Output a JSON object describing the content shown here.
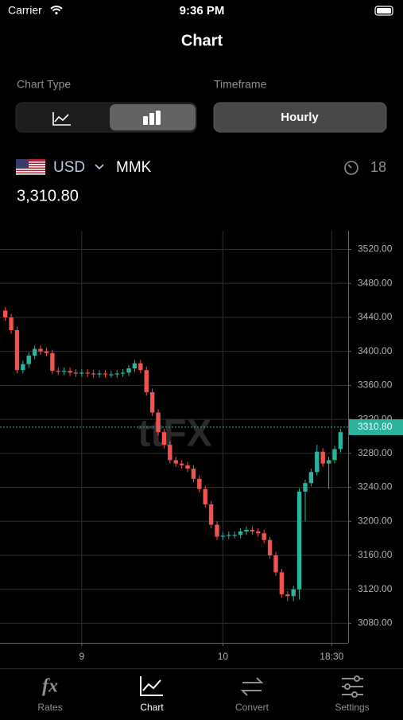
{
  "status_bar": {
    "carrier": "Carrier",
    "time": "9:36 PM"
  },
  "header": {
    "title": "Chart"
  },
  "controls": {
    "chart_type_label": "Chart Type",
    "timeframe_label": "Timeframe",
    "timeframe": "Hourly"
  },
  "pair": {
    "base": "USD",
    "quote": "MMK",
    "countdown": 18
  },
  "price": "3,310.80",
  "chart_data": {
    "type": "candlestick",
    "watermark": "ttFX",
    "x": [
      -13,
      -12,
      -11,
      -10,
      -9,
      -8,
      -7,
      -6,
      -5,
      -4,
      -3,
      -2,
      -1,
      0,
      1,
      2,
      3,
      4,
      5,
      6,
      7,
      8,
      9,
      10,
      11,
      12,
      13,
      14,
      15,
      16,
      17,
      18,
      19,
      20,
      21,
      22,
      23,
      24,
      25,
      26,
      27,
      28,
      29,
      30,
      31,
      32,
      33,
      34,
      35,
      36,
      37,
      38,
      39,
      40,
      41,
      42,
      43,
      44
    ],
    "open": [
      3448,
      3440,
      3425,
      3378,
      3385,
      3395,
      3403,
      3400,
      3398,
      3377,
      3376,
      3377,
      3375,
      3374,
      3375,
      3374,
      3373,
      3374,
      3373,
      3373,
      3374,
      3375,
      3380,
      3386,
      3378,
      3352,
      3328,
      3305,
      3290,
      3272,
      3268,
      3266,
      3262,
      3250,
      3238,
      3220,
      3196,
      3182,
      3183,
      3184,
      3184,
      3188,
      3190,
      3188,
      3186,
      3178,
      3160,
      3140,
      3114,
      3112,
      3120,
      3235,
      3245,
      3258,
      3282,
      3268,
      3272,
      3285
    ],
    "high": [
      3452,
      3444,
      3429,
      3389,
      3399,
      3407,
      3407,
      3404,
      3402,
      3381,
      3381,
      3381,
      3379,
      3379,
      3379,
      3378,
      3378,
      3378,
      3377,
      3378,
      3379,
      3384,
      3390,
      3390,
      3382,
      3356,
      3332,
      3309,
      3294,
      3276,
      3272,
      3270,
      3266,
      3254,
      3242,
      3224,
      3200,
      3187,
      3188,
      3188,
      3192,
      3194,
      3194,
      3192,
      3190,
      3182,
      3164,
      3144,
      3118,
      3124,
      3239,
      3249,
      3262,
      3290,
      3286,
      3276,
      3289,
      3309
    ],
    "low": [
      3436,
      3421,
      3374,
      3374,
      3381,
      3391,
      3396,
      3394,
      3373,
      3372,
      3372,
      3371,
      3370,
      3370,
      3370,
      3369,
      3369,
      3369,
      3369,
      3369,
      3370,
      3371,
      3376,
      3374,
      3348,
      3324,
      3301,
      3286,
      3268,
      3264,
      3262,
      3258,
      3246,
      3234,
      3216,
      3192,
      3178,
      3178,
      3179,
      3180,
      3180,
      3184,
      3184,
      3182,
      3174,
      3156,
      3136,
      3110,
      3106,
      3106,
      3108,
      3200,
      3241,
      3254,
      3264,
      3238,
      3268,
      3281
    ],
    "close": [
      3440,
      3425,
      3378,
      3385,
      3395,
      3403,
      3400,
      3398,
      3377,
      3376,
      3377,
      3375,
      3374,
      3375,
      3374,
      3373,
      3374,
      3373,
      3373,
      3374,
      3375,
      3380,
      3386,
      3378,
      3352,
      3328,
      3305,
      3290,
      3272,
      3268,
      3266,
      3262,
      3250,
      3238,
      3220,
      3196,
      3182,
      3183,
      3184,
      3184,
      3188,
      3190,
      3188,
      3186,
      3178,
      3160,
      3140,
      3114,
      3112,
      3120,
      3235,
      3245,
      3258,
      3282,
      3268,
      3272,
      3285,
      3305
    ],
    "up_color": "#2bb39b",
    "down_color": "#ef5350",
    "xlim": [
      -13.9,
      45.3
    ],
    "xticks": [
      {
        "value": 0,
        "label": "9"
      },
      {
        "value": 24,
        "label": "10"
      },
      {
        "value": 42.5,
        "label": "18:30"
      }
    ],
    "ylim": [
      3057,
      3542
    ],
    "yticks": [
      {
        "value": 3080,
        "label": "3080.00"
      },
      {
        "value": 3120,
        "label": "3120.00"
      },
      {
        "value": 3160,
        "label": "3160.00"
      },
      {
        "value": 3200,
        "label": "3200.00"
      },
      {
        "value": 3240,
        "label": "3240.00"
      },
      {
        "value": 3280,
        "label": "3280.00"
      },
      {
        "value": 3320,
        "label": "3320.00"
      },
      {
        "value": 3360,
        "label": "3360.00"
      },
      {
        "value": 3400,
        "label": "3400.00"
      },
      {
        "value": 3440,
        "label": "3440.00"
      },
      {
        "value": 3480,
        "label": "3480.00"
      },
      {
        "value": 3520,
        "label": "3520.00"
      }
    ],
    "last_price": {
      "value": 3310.8,
      "label": "3310.80"
    },
    "grid": true
  },
  "tab_bar": {
    "items": [
      {
        "label": "Rates",
        "icon": "fx"
      },
      {
        "label": "Chart"
      },
      {
        "label": "Convert"
      },
      {
        "label": "Settings"
      }
    ],
    "active": 1
  }
}
